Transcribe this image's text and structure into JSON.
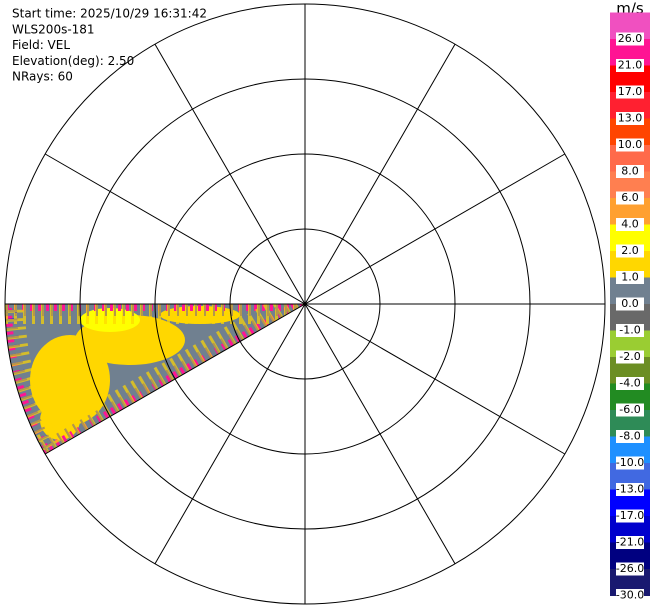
{
  "info": [
    "Start time: 2025/10/29 16:31:42",
    "WLS200s-181",
    "Field: VEL",
    "Elevation(deg): 2.50",
    "NRays: 60"
  ],
  "colorbar": {
    "unit": "m/s",
    "bins": [
      {
        "color": "#f050c0",
        "label": "26.0"
      },
      {
        "color": "#ff1493",
        "label": "21.0"
      },
      {
        "color": "#ff0000",
        "label": "17.0"
      },
      {
        "color": "#ff2030",
        "label": "13.0"
      },
      {
        "color": "#ff4500",
        "label": "10.0"
      },
      {
        "color": "#ff6a4a",
        "label": "8.0"
      },
      {
        "color": "#ff7f50",
        "label": "6.0"
      },
      {
        "color": "#ffa030",
        "label": "4.0"
      },
      {
        "color": "#ffff00",
        "label": "2.0"
      },
      {
        "color": "#ffd700",
        "label": "1.0"
      },
      {
        "color": "#708090",
        "label": "0.0"
      },
      {
        "color": "#696969",
        "label": "-1.0"
      },
      {
        "color": "#9acd32",
        "label": "-2.0"
      },
      {
        "color": "#6b8e23",
        "label": "-4.0"
      },
      {
        "color": "#228b22",
        "label": "-6.0"
      },
      {
        "color": "#2e8b57",
        "label": "-8.0"
      },
      {
        "color": "#1e90ff",
        "label": "-10.0"
      },
      {
        "color": "#4169e1",
        "label": "-13.0"
      },
      {
        "color": "#0000ff",
        "label": "-17.0"
      },
      {
        "color": "#0000cd",
        "label": "-21.0"
      },
      {
        "color": "#000080",
        "label": "-26.0"
      },
      {
        "color": "#191970",
        "label": "-30.0"
      }
    ]
  }
}
